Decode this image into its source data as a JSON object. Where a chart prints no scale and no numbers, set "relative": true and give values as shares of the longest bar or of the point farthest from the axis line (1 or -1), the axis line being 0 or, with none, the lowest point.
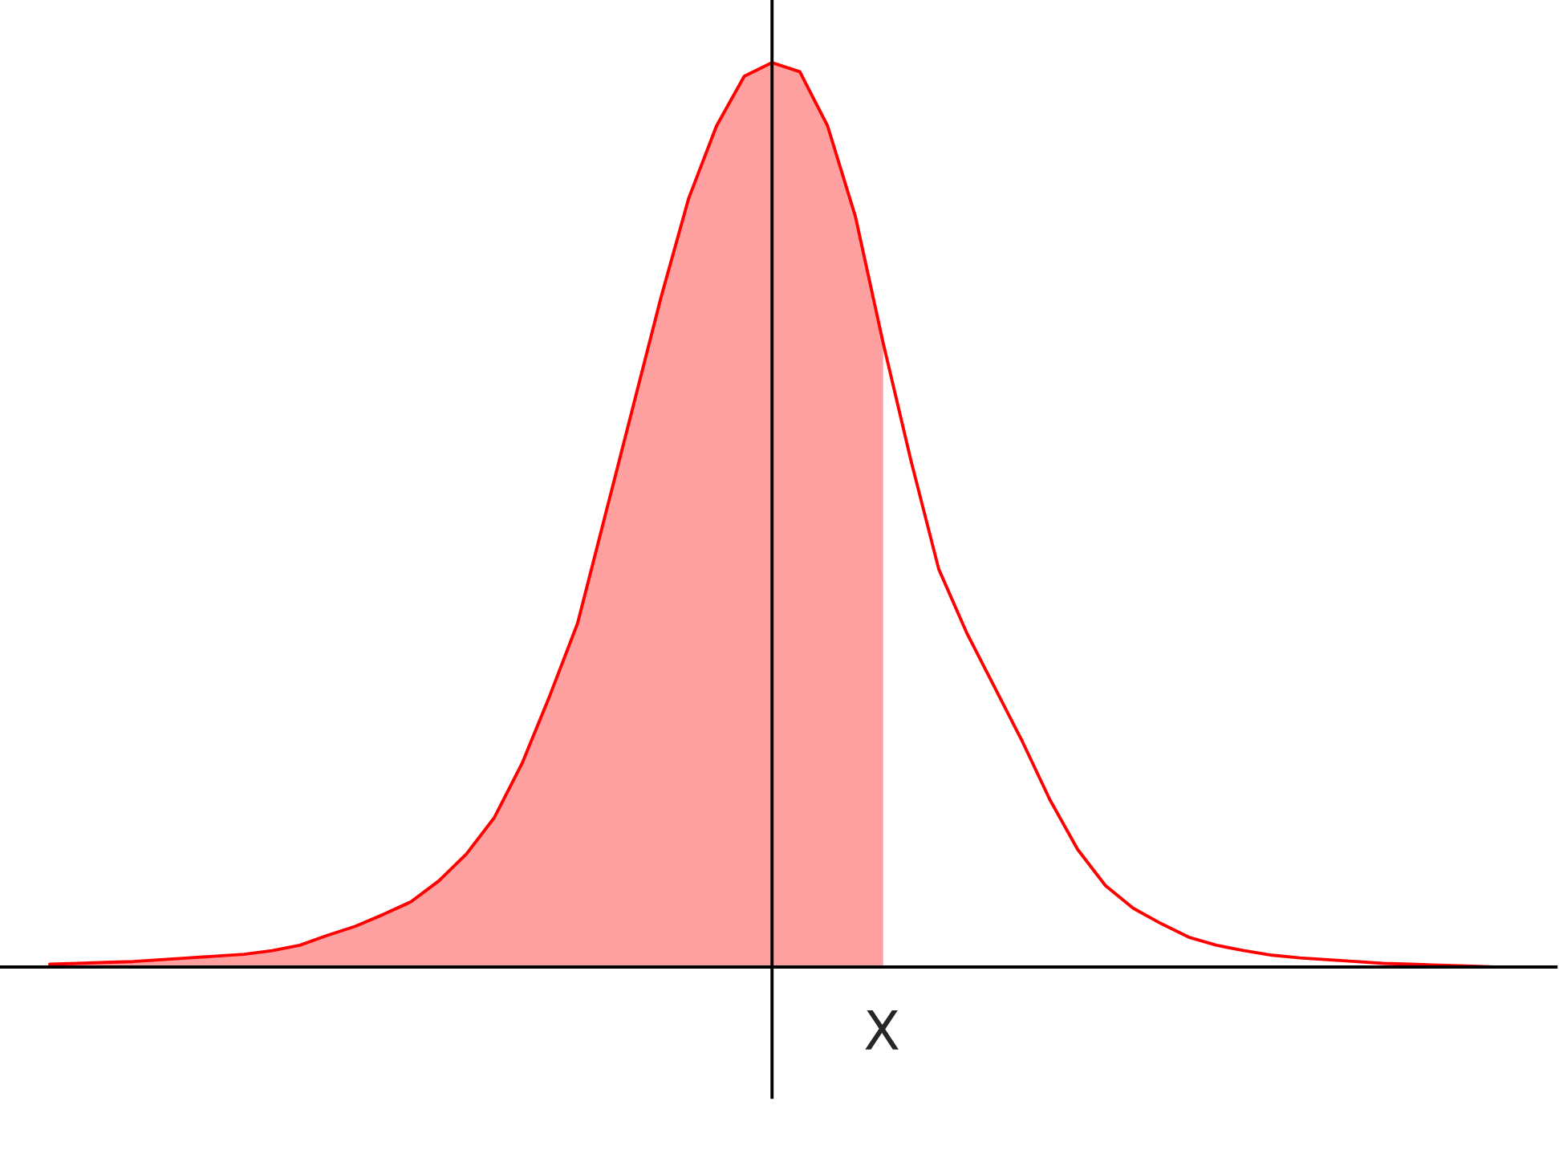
{
  "chart_data": {
    "type": "line",
    "relative": true,
    "categories": [
      null,
      null,
      null,
      null,
      null,
      null,
      null,
      null,
      null,
      null,
      null,
      null,
      null,
      null,
      null,
      null,
      null,
      null,
      null,
      null,
      null,
      null,
      null,
      null,
      null,
      null,
      null,
      null,
      null,
      null,
      null,
      null,
      null,
      null,
      null,
      null,
      null,
      null,
      null,
      null,
      null,
      null,
      null,
      null,
      null,
      null,
      null,
      null,
      null,
      null,
      null,
      null,
      null
    ],
    "series": [
      {
        "type": "area",
        "color": "#ffa0a0",
        "values": [
          0.003,
          0.004,
          0.005,
          0.006,
          0.008,
          0.01,
          0.012,
          0.014,
          0.018,
          0.024,
          0.035,
          0.045,
          0.058,
          0.072,
          0.095,
          0.125,
          0.165,
          0.225,
          0.3,
          0.38,
          0.5,
          0.62,
          0.74,
          0.85,
          0.93,
          0.985,
          1.0,
          0.99,
          0.93,
          0.83,
          0.69,
          null,
          null,
          null,
          null,
          null,
          null,
          null,
          null,
          null,
          null,
          null,
          null,
          null,
          null,
          null,
          null,
          null,
          null,
          null,
          null,
          null,
          null
        ]
      },
      {
        "color": "#ff0000",
        "values": [
          0.003,
          0.004,
          0.005,
          0.006,
          0.008,
          0.01,
          0.012,
          0.014,
          0.018,
          0.024,
          0.035,
          0.045,
          0.058,
          0.072,
          0.095,
          0.125,
          0.165,
          0.225,
          0.3,
          0.38,
          0.5,
          0.62,
          0.74,
          0.85,
          0.93,
          0.985,
          1.0,
          0.99,
          0.93,
          0.83,
          0.69,
          0.56,
          0.44,
          0.37,
          0.31,
          0.25,
          0.185,
          0.13,
          0.09,
          0.065,
          0.048,
          0.033,
          0.024,
          0.018,
          0.013,
          0.01,
          0.008,
          0.006,
          0.004,
          0.003,
          0.002,
          0.001,
          0.0
        ]
      }
    ],
    "annotations": [
      "X"
    ]
  }
}
